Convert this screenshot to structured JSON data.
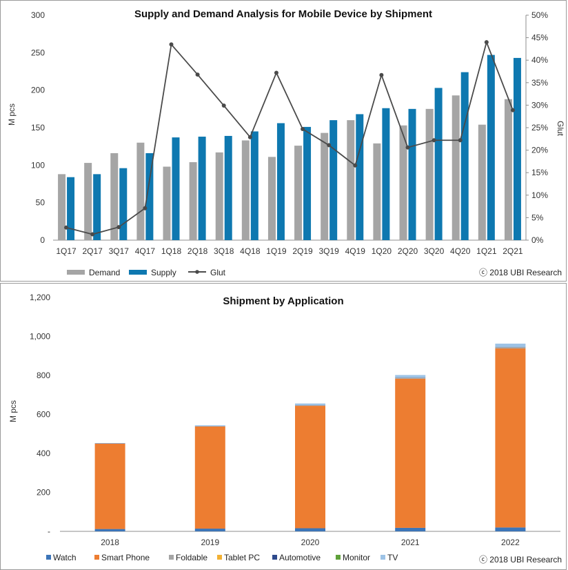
{
  "colors": {
    "demand": "#A5A5A5",
    "supply": "#0E78B0",
    "glut": "#4A4A4A",
    "watch": "#3C75B8",
    "smart_phone": "#ED7D31",
    "foldable": "#A5A5A5",
    "tablet_pc": "#F2B134",
    "automotive": "#2E4A8C",
    "monitor": "#5FA13A",
    "tv": "#9DC3E6"
  },
  "chart_data": [
    {
      "type": "bar",
      "title": "Supply and Demand Analysis for Mobile Device by Shipment",
      "ylabel": "M pcs",
      "y2label": "Glut",
      "ylim": [
        0,
        300
      ],
      "y2lim": [
        0,
        50
      ],
      "yticks": [
        "0",
        "50",
        "100",
        "150",
        "200",
        "250",
        "300"
      ],
      "y2ticks": [
        "0%",
        "5%",
        "10%",
        "15%",
        "20%",
        "25%",
        "30%",
        "35%",
        "40%",
        "45%",
        "50%"
      ],
      "categories": [
        "1Q17",
        "2Q17",
        "3Q17",
        "4Q17",
        "1Q18",
        "2Q18",
        "3Q18",
        "4Q18",
        "1Q19",
        "2Q19",
        "3Q19",
        "4Q19",
        "1Q20",
        "2Q20",
        "3Q20",
        "4Q20",
        "1Q21",
        "2Q21"
      ],
      "series": [
        {
          "name": "Demand",
          "kind": "bar",
          "values": [
            88,
            103,
            116,
            130,
            98,
            104,
            117,
            133,
            111,
            126,
            143,
            160,
            129,
            153,
            175,
            193,
            154,
            188
          ]
        },
        {
          "name": "Supply",
          "kind": "bar",
          "values": [
            84,
            88,
            96,
            116,
            137,
            138,
            139,
            145,
            156,
            151,
            160,
            168,
            176,
            175,
            203,
            224,
            247,
            243
          ]
        },
        {
          "name": "Glut",
          "kind": "line",
          "axis": "right",
          "values": [
            2.8,
            1.3,
            2.9,
            7.1,
            43.5,
            36.8,
            29.9,
            22.9,
            37.2,
            24.7,
            21.1,
            16.6,
            36.7,
            20.6,
            22.2,
            22.2,
            44.0,
            28.9
          ]
        }
      ],
      "legend_position": "bottom-left",
      "copyright": "ⓒ 2018 UBI Research"
    },
    {
      "type": "bar",
      "stacked": true,
      "title": "Shipment by Application",
      "ylabel": "M pcs",
      "ylim": [
        0,
        1200
      ],
      "yticks": [
        "-",
        "200",
        "400",
        "600",
        "800",
        "1,000",
        "1,200"
      ],
      "categories": [
        "2018",
        "2019",
        "2020",
        "2021",
        "2022"
      ],
      "series": [
        {
          "name": "Watch",
          "values": [
            12,
            14,
            16,
            18,
            20
          ]
        },
        {
          "name": "Smart Phone",
          "values": [
            438,
            524,
            628,
            765,
            918
          ]
        },
        {
          "name": "Foldable",
          "values": [
            0,
            0,
            2,
            5,
            7
          ]
        },
        {
          "name": "Tablet PC",
          "values": [
            0,
            0,
            0,
            0,
            0
          ]
        },
        {
          "name": "Automotive",
          "values": [
            1,
            1,
            1,
            1,
            1
          ]
        },
        {
          "name": "Monitor",
          "values": [
            0,
            0,
            0,
            0,
            0
          ]
        },
        {
          "name": "TV",
          "values": [
            2,
            5,
            9,
            13,
            17
          ]
        }
      ],
      "legend_position": "bottom-left",
      "copyright": "ⓒ 2018 UBI Research"
    }
  ]
}
